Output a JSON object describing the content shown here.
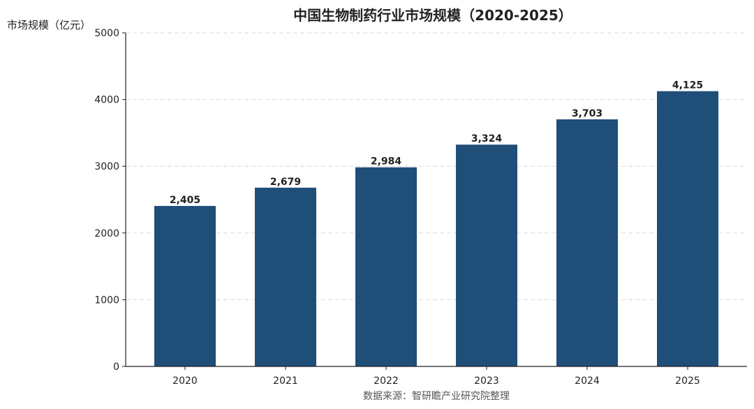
{
  "chart_data": {
    "type": "bar",
    "title": "中国生物制药行业市场规模（2020-2025）",
    "xlabel": "",
    "ylabel": "市场规模（亿元）",
    "categories": [
      "2020",
      "2021",
      "2022",
      "2023",
      "2024",
      "2025"
    ],
    "values": [
      2405,
      2679,
      2984,
      3324,
      3703,
      4125
    ],
    "data_labels": [
      "2,405",
      "2,679",
      "2,984",
      "3,324",
      "3,703",
      "4,125"
    ],
    "ylim": [
      0,
      5000
    ],
    "yticks": [
      0,
      1000,
      2000,
      3000,
      4000,
      5000
    ],
    "grid": "horizontal dashed",
    "legend": "none",
    "bar_color": "#1f4e79",
    "source_note": "数据来源：智研瞻产业研究院整理"
  }
}
